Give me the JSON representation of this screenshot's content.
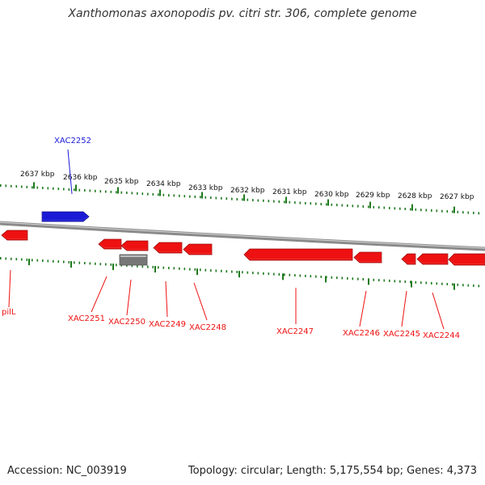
{
  "header": {
    "title": "Xanthomonas axonopodis pv. citri str. 306, complete genome"
  },
  "footer": {
    "accession": "Accession: NC_003919",
    "topology": "Topology: circular; Length: 5,175,554 bp; Genes: 4,373"
  },
  "colors": {
    "forward_gene": "#1a1ad6",
    "reverse_gene": "#ee1111",
    "other_gene": "#777777",
    "axis_tick": "#1f7a1f",
    "backbone": "#8a8a8a"
  },
  "scale": {
    "labels": [
      "2637 kbp",
      "2636 kbp",
      "2635 kbp",
      "2634 kbp",
      "2633 kbp",
      "2632 kbp",
      "2631 kbp",
      "2630 kbp",
      "2629 kbp",
      "2628 kbp",
      "2627 kbp"
    ]
  },
  "genes": [
    {
      "label": "XAC2252",
      "strand": "forward",
      "icon": "right-arrow-gene"
    },
    {
      "label": "pilL",
      "strand": "reverse",
      "icon": "left-arrow-gene"
    },
    {
      "label": "XAC2251",
      "strand": "reverse",
      "icon": "left-arrow-gene"
    },
    {
      "label": "XAC2250",
      "strand": "reverse",
      "icon": "left-arrow-gene"
    },
    {
      "label": "XAC2249",
      "strand": "reverse",
      "icon": "left-arrow-gene"
    },
    {
      "label": "XAC2248",
      "strand": "reverse",
      "icon": "left-arrow-gene"
    },
    {
      "label": "XAC2247",
      "strand": "reverse",
      "icon": "left-arrow-gene"
    },
    {
      "label": "XAC2246",
      "strand": "reverse",
      "icon": "left-arrow-gene"
    },
    {
      "label": "XAC2245",
      "strand": "reverse",
      "icon": "left-arrow-gene"
    },
    {
      "label": "XAC2244",
      "strand": "reverse",
      "icon": "left-arrow-gene"
    },
    {
      "label": "",
      "strand": "other",
      "icon": "gray-feature"
    }
  ]
}
